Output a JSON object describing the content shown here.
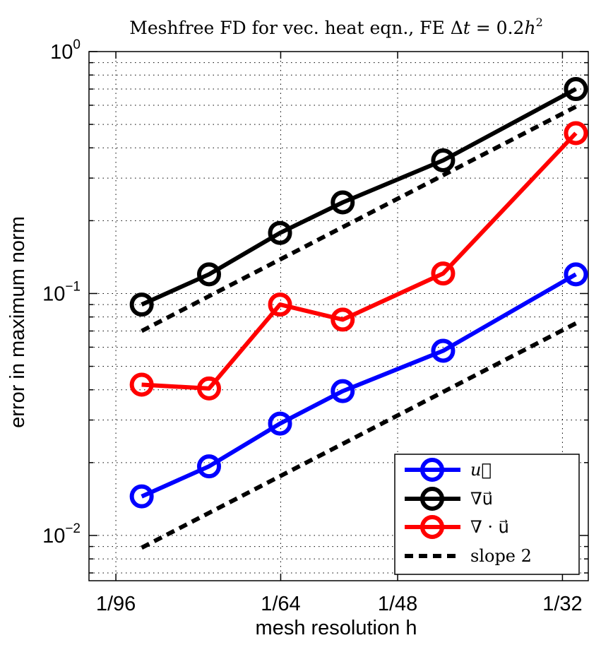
{
  "chart_data": {
    "type": "line",
    "title": "Meshfree FD for vec. heat eqn., FE Δt = 0.2h²",
    "title_parts": {
      "prefix": "Meshfree FD for vec. heat eqn., FE ",
      "delta": "Δ",
      "t": "t",
      "eq": " = 0.2",
      "h": "h",
      "sup": "2"
    },
    "xlabel": "mesh resolution h",
    "ylabel": "error in maximum norm",
    "x_scale": "log",
    "y_scale": "log",
    "xlim": [
      0.00975,
      0.0333
    ],
    "ylim": [
      0.0065,
      1.0
    ],
    "x_ticks": [
      {
        "value": 0.0104167,
        "label": "1/96"
      },
      {
        "value": 0.015625,
        "label": "1/64"
      },
      {
        "value": 0.0208333,
        "label": "1/48"
      },
      {
        "value": 0.03125,
        "label": "1/32"
      }
    ],
    "y_ticks": [
      {
        "value": 0.01,
        "base": "10",
        "exp": "−2"
      },
      {
        "value": 0.1,
        "base": "10",
        "exp": "−1"
      },
      {
        "value": 1,
        "base": "10",
        "exp": "0"
      }
    ],
    "grid": true,
    "legend_position": "bottom-right",
    "x": [
      0.0111,
      0.0131,
      0.0156,
      0.0182,
      0.0233,
      0.0323
    ],
    "series": [
      {
        "name": "u",
        "legend": "u⃗",
        "color": "#0000ff",
        "style": "solid",
        "marker": "circle",
        "values": [
          0.0145,
          0.0193,
          0.029,
          0.0395,
          0.058,
          0.12
        ]
      },
      {
        "name": "grad u",
        "legend": "∇u⃗",
        "color": "#000000",
        "style": "solid",
        "marker": "circle",
        "values": [
          0.09,
          0.12,
          0.178,
          0.238,
          0.355,
          0.7
        ]
      },
      {
        "name": "div u",
        "legend": "∇ · u⃗",
        "color": "#ff0000",
        "style": "solid",
        "marker": "circle",
        "values": [
          0.042,
          0.0405,
          0.09,
          0.078,
          0.121,
          0.46
        ]
      },
      {
        "name": "slope 2 (upper)",
        "legend": "slope 2",
        "color": "#000000",
        "style": "dashed",
        "marker": "none",
        "x": [
          0.0111,
          0.0323
        ],
        "values": [
          0.07,
          0.592
        ]
      },
      {
        "name": "slope 2 (lower)",
        "legend": "",
        "color": "#000000",
        "style": "dashed",
        "marker": "none",
        "x": [
          0.0111,
          0.0323
        ],
        "values": [
          0.0089,
          0.0753
        ]
      }
    ],
    "legend_entries": [
      {
        "label": "u⃗",
        "color": "#0000ff",
        "style": "solid",
        "marker": "circle"
      },
      {
        "label": "∇u⃗",
        "color": "#000000",
        "style": "solid",
        "marker": "circle"
      },
      {
        "label": "∇ · u⃗",
        "color": "#ff0000",
        "style": "solid",
        "marker": "circle"
      },
      {
        "label": "slope 2",
        "color": "#000000",
        "style": "dashed",
        "marker": "none"
      }
    ]
  }
}
